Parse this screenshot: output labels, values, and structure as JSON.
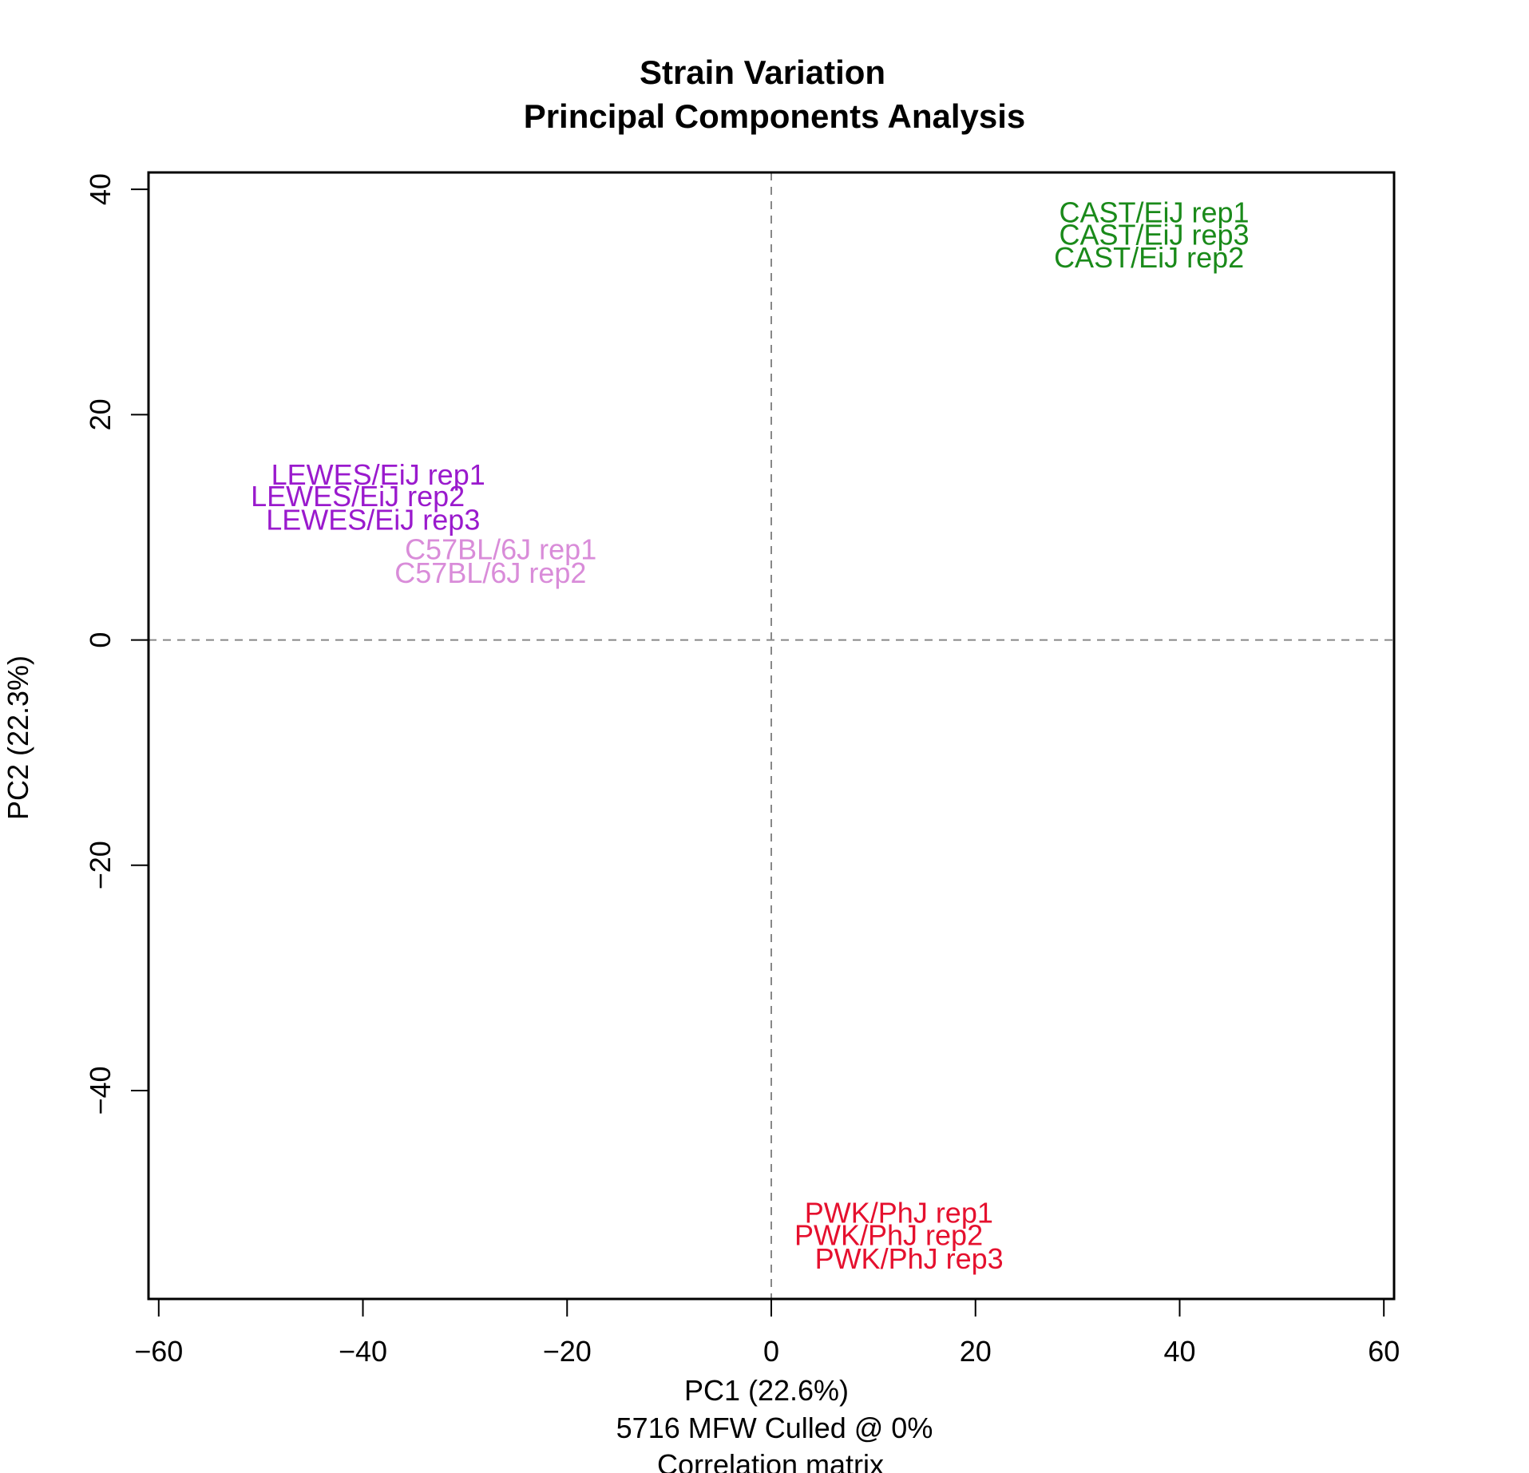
{
  "chart_data": {
    "type": "scatter",
    "title_lines": [
      "Strain Variation",
      "Principal Components Analysis"
    ],
    "xlabel": "PC1 (22.6%)",
    "ylabel": "PC2 (22.3%)",
    "sublabels": [
      "5716 MFW  Culled @ 0%",
      "Correlation matrix"
    ],
    "xlim": [
      -61,
      61
    ],
    "ylim": [
      -58.5,
      41.5
    ],
    "xticks": [
      -60,
      -40,
      -20,
      0,
      20,
      40,
      60
    ],
    "yticks": [
      -40,
      -20,
      0,
      20,
      40
    ],
    "xtick_labels": [
      "−60",
      "−40",
      "−20",
      "0",
      "20",
      "40",
      "60"
    ],
    "ytick_labels": [
      "−40",
      "−20",
      "0",
      "20",
      "40"
    ],
    "reference_lines": {
      "x": 0,
      "y": 0,
      "style": "dashed"
    },
    "grid": false,
    "legend": "none",
    "points": [
      {
        "label": "CAST/EiJ rep1",
        "x": 37.5,
        "y": 38.0,
        "color": "#1a8a1a"
      },
      {
        "label": "CAST/EiJ rep3",
        "x": 37.5,
        "y": 36.0,
        "color": "#1a8a1a"
      },
      {
        "label": "CAST/EiJ rep2",
        "x": 37.0,
        "y": 34.0,
        "color": "#1a8a1a"
      },
      {
        "label": "LEWES/EiJ rep1",
        "x": -38.5,
        "y": 14.7,
        "color": "#9a1acd"
      },
      {
        "label": "LEWES/EiJ rep2",
        "x": -40.5,
        "y": 12.8,
        "color": "#9a1acd"
      },
      {
        "label": "LEWES/EiJ rep3",
        "x": -39.0,
        "y": 10.7,
        "color": "#9a1acd"
      },
      {
        "label": "C57BL/6J rep1",
        "x": -26.5,
        "y": 8.1,
        "color": "#d98cd9"
      },
      {
        "label": "C57BL/6J rep2",
        "x": -27.5,
        "y": 6.0,
        "color": "#d98cd9"
      },
      {
        "label": "PWK/PhJ rep1",
        "x": 12.5,
        "y": -50.8,
        "color": "#e5102e"
      },
      {
        "label": "PWK/PhJ rep2",
        "x": 11.5,
        "y": -52.8,
        "color": "#e5102e"
      },
      {
        "label": "PWK/PhJ rep3",
        "x": 13.5,
        "y": -54.9,
        "color": "#e5102e"
      }
    ]
  }
}
